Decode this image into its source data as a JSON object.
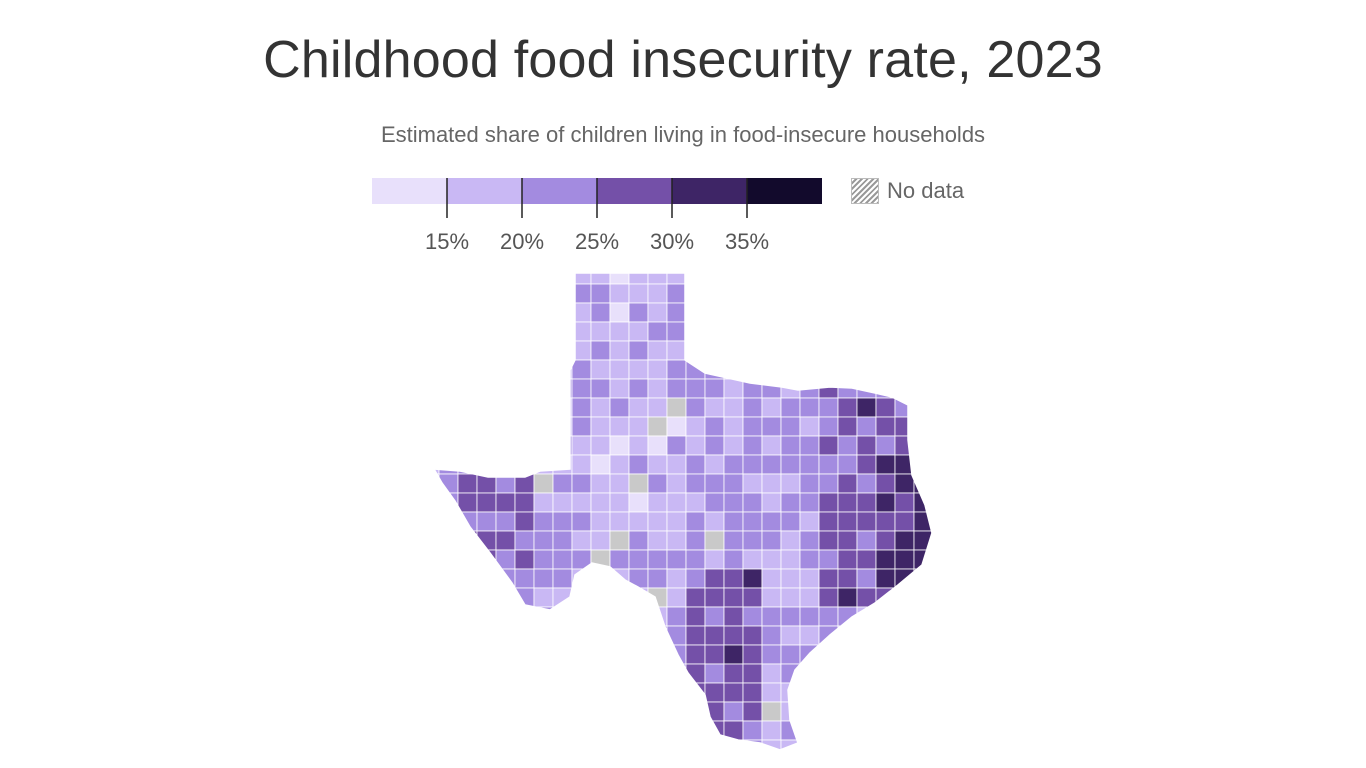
{
  "title": "Childhood food insecurity rate, 2023",
  "subtitle": "Estimated share of children living in food-insecure households",
  "legend": {
    "colors": [
      "#e8e0fb",
      "#c9b8f4",
      "#a38be0",
      "#7450a8",
      "#3e2566",
      "#120a2c"
    ],
    "ticks": [
      "15%",
      "20%",
      "25%",
      "30%",
      "35%"
    ],
    "no_data_label": "No data",
    "no_data_color": "#c9c9c9"
  },
  "map": {
    "region": "Texas",
    "unit": "county",
    "rate_bins_percent": [
      [
        0,
        15
      ],
      [
        15,
        20
      ],
      [
        20,
        25
      ],
      [
        25,
        30
      ],
      [
        30,
        35
      ],
      [
        35,
        100
      ]
    ]
  }
}
